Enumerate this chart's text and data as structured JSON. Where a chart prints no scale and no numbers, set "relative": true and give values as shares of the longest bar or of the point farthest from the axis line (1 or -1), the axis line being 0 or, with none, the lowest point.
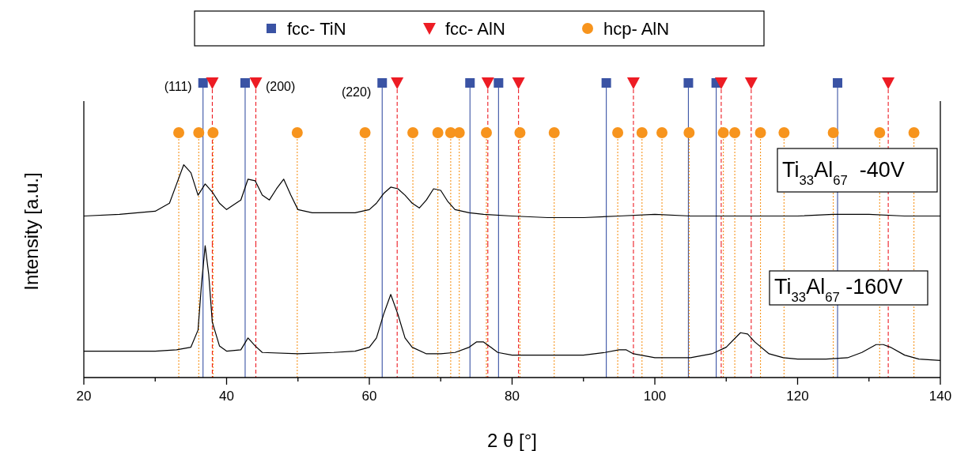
{
  "chart_data": [
    {
      "type": "line",
      "relative": true,
      "ylabel": "Intensity [a.u.]",
      "xlim": [
        20,
        140
      ],
      "tick_labels": false,
      "legend": "top",
      "series": [
        {
          "type": "line",
          "color": "#000000",
          "x": [
            20,
            25,
            30,
            32,
            33,
            34,
            35,
            36,
            37,
            38,
            39,
            40,
            42,
            43,
            44,
            45,
            46,
            47,
            48,
            49,
            50,
            52,
            55,
            58,
            60,
            61,
            62,
            63,
            64,
            65,
            66,
            67,
            68,
            69,
            70,
            71,
            72,
            74,
            76,
            80,
            85,
            90,
            95,
            100,
            105,
            110,
            115,
            120,
            125,
            130,
            135,
            140
          ],
          "values": [
            0.17,
            0.18,
            0.2,
            0.25,
            0.37,
            0.49,
            0.44,
            0.3,
            0.37,
            0.32,
            0.25,
            0.21,
            0.27,
            0.4,
            0.39,
            0.3,
            0.27,
            0.34,
            0.4,
            0.3,
            0.21,
            0.19,
            0.19,
            0.19,
            0.21,
            0.25,
            0.31,
            0.35,
            0.34,
            0.3,
            0.25,
            0.22,
            0.27,
            0.34,
            0.33,
            0.26,
            0.21,
            0.19,
            0.18,
            0.17,
            0.16,
            0.16,
            0.17,
            0.18,
            0.17,
            0.17,
            0.17,
            0.17,
            0.18,
            0.18,
            0.17,
            0.17
          ]
        },
        {
          "type": "scatter",
          "name": "fcc- TiN",
          "color": "#3a53a4",
          "marker": "square",
          "x": [
            36.7,
            42.6,
            61.8,
            74.1,
            78.1,
            93.2,
            104.7,
            108.6,
            125.6
          ],
          "values": [
            1,
            1,
            1,
            1,
            1,
            1,
            1,
            1,
            1
          ]
        },
        {
          "type": "scatter",
          "name": "fcc- AlN",
          "color": "#ed1c24",
          "marker": "triangle",
          "x": [
            38.0,
            44.1,
            63.9,
            76.6,
            80.9,
            97.0,
            109.3,
            113.5,
            132.7
          ],
          "values": [
            1,
            1,
            1,
            1,
            1,
            1,
            1,
            1,
            1
          ]
        },
        {
          "type": "scatter",
          "name": "hcp- AlN",
          "color": "#f7941d",
          "marker": "circle",
          "x": [
            33.3,
            36.1,
            38.1,
            49.9,
            59.4,
            66.1,
            69.6,
            71.4,
            72.6,
            76.4,
            81.1,
            85.9,
            94.8,
            98.2,
            101.0,
            104.8,
            109.6,
            111.2,
            114.8,
            118.1,
            125.0,
            131.5,
            136.3
          ],
          "values": [
            0.69,
            0.69,
            0.69,
            0.69,
            0.69,
            0.69,
            0.69,
            0.69,
            0.69,
            0.69,
            0.69,
            0.69,
            0.69,
            0.69,
            0.69,
            0.69,
            0.69,
            0.69,
            0.69,
            0.69,
            0.69,
            0.69,
            0.69
          ]
        }
      ],
      "ref_lines": [
        {
          "axis": "x",
          "value": 36.7,
          "color": "#3a53a4",
          "line_style": "solid"
        },
        {
          "axis": "x",
          "value": 42.6,
          "color": "#3a53a4",
          "line_style": "solid"
        },
        {
          "axis": "x",
          "value": 61.8,
          "color": "#3a53a4",
          "line_style": "solid"
        },
        {
          "axis": "x",
          "value": 74.1,
          "color": "#3a53a4",
          "line_style": "solid"
        },
        {
          "axis": "x",
          "value": 78.1,
          "color": "#3a53a4",
          "line_style": "solid"
        },
        {
          "axis": "x",
          "value": 93.2,
          "color": "#3a53a4",
          "line_style": "solid"
        },
        {
          "axis": "x",
          "value": 104.7,
          "color": "#3a53a4",
          "line_style": "solid"
        },
        {
          "axis": "x",
          "value": 108.6,
          "color": "#3a53a4",
          "line_style": "solid"
        },
        {
          "axis": "x",
          "value": 125.6,
          "color": "#3a53a4",
          "line_style": "solid"
        },
        {
          "axis": "x",
          "value": 38.0,
          "color": "#ed1c24",
          "line_style": "dashed"
        },
        {
          "axis": "x",
          "value": 44.1,
          "color": "#ed1c24",
          "line_style": "dashed"
        },
        {
          "axis": "x",
          "value": 63.9,
          "color": "#ed1c24",
          "line_style": "dashed"
        },
        {
          "axis": "x",
          "value": 76.6,
          "color": "#ed1c24",
          "line_style": "dashed"
        },
        {
          "axis": "x",
          "value": 80.9,
          "color": "#ed1c24",
          "line_style": "dashed"
        },
        {
          "axis": "x",
          "value": 97.0,
          "color": "#ed1c24",
          "line_style": "dashed"
        },
        {
          "axis": "x",
          "value": 109.3,
          "color": "#ed1c24",
          "line_style": "dashed"
        },
        {
          "axis": "x",
          "value": 113.5,
          "color": "#ed1c24",
          "line_style": "dashed"
        },
        {
          "axis": "x",
          "value": 132.7,
          "color": "#ed1c24",
          "line_style": "dashed"
        },
        {
          "axis": "x",
          "value": 33.3,
          "color": "#f7941d",
          "line_style": "dotted"
        },
        {
          "axis": "x",
          "value": 36.1,
          "color": "#f7941d",
          "line_style": "dotted"
        },
        {
          "axis": "x",
          "value": 38.1,
          "color": "#f7941d",
          "line_style": "dotted"
        },
        {
          "axis": "x",
          "value": 49.9,
          "color": "#f7941d",
          "line_style": "dotted"
        },
        {
          "axis": "x",
          "value": 59.4,
          "color": "#f7941d",
          "line_style": "dotted"
        },
        {
          "axis": "x",
          "value": 66.1,
          "color": "#f7941d",
          "line_style": "dotted"
        },
        {
          "axis": "x",
          "value": 69.6,
          "color": "#f7941d",
          "line_style": "dotted"
        },
        {
          "axis": "x",
          "value": 71.4,
          "color": "#f7941d",
          "line_style": "dotted"
        },
        {
          "axis": "x",
          "value": 72.6,
          "color": "#f7941d",
          "line_style": "dotted"
        },
        {
          "axis": "x",
          "value": 76.4,
          "color": "#f7941d",
          "line_style": "dotted"
        },
        {
          "axis": "x",
          "value": 81.1,
          "color": "#f7941d",
          "line_style": "dotted"
        },
        {
          "axis": "x",
          "value": 85.9,
          "color": "#f7941d",
          "line_style": "dotted"
        },
        {
          "axis": "x",
          "value": 94.8,
          "color": "#f7941d",
          "line_style": "dotted"
        },
        {
          "axis": "x",
          "value": 98.2,
          "color": "#f7941d",
          "line_style": "dotted"
        },
        {
          "axis": "x",
          "value": 101.0,
          "color": "#f7941d",
          "line_style": "dotted"
        },
        {
          "axis": "x",
          "value": 104.8,
          "color": "#f7941d",
          "line_style": "dotted"
        },
        {
          "axis": "x",
          "value": 109.6,
          "color": "#f7941d",
          "line_style": "dotted"
        },
        {
          "axis": "x",
          "value": 111.2,
          "color": "#f7941d",
          "line_style": "dotted"
        },
        {
          "axis": "x",
          "value": 114.8,
          "color": "#f7941d",
          "line_style": "dotted"
        },
        {
          "axis": "x",
          "value": 118.1,
          "color": "#f7941d",
          "line_style": "dotted"
        },
        {
          "axis": "x",
          "value": 125.0,
          "color": "#f7941d",
          "line_style": "dotted"
        },
        {
          "axis": "x",
          "value": 131.5,
          "color": "#f7941d",
          "line_style": "dotted"
        },
        {
          "axis": "x",
          "value": 136.3,
          "color": "#f7941d",
          "line_style": "dotted"
        }
      ],
      "annotations": [
        {
          "text": "(111)",
          "x": 36.7,
          "y": 1
        },
        {
          "text": "(200)",
          "x": 42.6,
          "y": 1
        },
        {
          "text": "(220)",
          "x": 61.8,
          "y": 1
        },
        "Ti$_{33}$Al$_{67}$  -40V"
      ]
    },
    {
      "type": "line",
      "relative": true,
      "xlabel": "2 θ [°]",
      "xlim": [
        20,
        140
      ],
      "tick_labels": "x",
      "xticks": [
        20,
        {
          "value": 30,
          "label": null
        },
        40,
        {
          "value": 50,
          "label": null
        },
        60,
        {
          "value": 70,
          "label": null
        },
        80,
        {
          "value": 90,
          "label": null
        },
        100,
        {
          "value": 110,
          "label": null
        },
        120,
        {
          "value": 130,
          "label": null
        },
        140
      ],
      "series": [
        {
          "type": "line",
          "color": "#000000",
          "x": [
            20,
            25,
            30,
            33,
            35,
            36,
            36.5,
            37,
            37.5,
            38,
            39,
            40,
            42,
            43,
            44,
            45,
            50,
            55,
            58,
            60,
            61,
            62,
            63,
            64,
            65,
            66,
            68,
            70,
            72,
            74,
            75,
            76,
            77,
            78,
            80,
            85,
            90,
            93,
            95,
            96,
            97,
            100,
            105,
            108,
            110,
            112,
            113,
            114,
            116,
            118,
            120,
            124,
            127,
            129,
            131,
            132,
            133,
            135,
            137,
            140
          ],
          "values": [
            0.2,
            0.2,
            0.2,
            0.21,
            0.23,
            0.36,
            0.72,
            1,
            0.78,
            0.42,
            0.24,
            0.2,
            0.21,
            0.3,
            0.24,
            0.19,
            0.18,
            0.19,
            0.2,
            0.23,
            0.3,
            0.48,
            0.63,
            0.48,
            0.3,
            0.23,
            0.18,
            0.18,
            0.19,
            0.23,
            0.27,
            0.27,
            0.23,
            0.19,
            0.17,
            0.17,
            0.17,
            0.19,
            0.21,
            0.21,
            0.18,
            0.15,
            0.15,
            0.18,
            0.23,
            0.34,
            0.33,
            0.27,
            0.18,
            0.15,
            0.14,
            0.14,
            0.15,
            0.19,
            0.25,
            0.25,
            0.23,
            0.17,
            0.14,
            0.13
          ]
        }
      ],
      "ref_lines": [
        {
          "axis": "x",
          "value": 36.7,
          "color": "#3a53a4",
          "line_style": "solid"
        },
        {
          "axis": "x",
          "value": 42.6,
          "color": "#3a53a4",
          "line_style": "solid"
        },
        {
          "axis": "x",
          "value": 61.8,
          "color": "#3a53a4",
          "line_style": "solid"
        },
        {
          "axis": "x",
          "value": 74.1,
          "color": "#3a53a4",
          "line_style": "solid"
        },
        {
          "axis": "x",
          "value": 78.1,
          "color": "#3a53a4",
          "line_style": "solid"
        },
        {
          "axis": "x",
          "value": 93.2,
          "color": "#3a53a4",
          "line_style": "solid"
        },
        {
          "axis": "x",
          "value": 104.7,
          "color": "#3a53a4",
          "line_style": "solid"
        },
        {
          "axis": "x",
          "value": 108.6,
          "color": "#3a53a4",
          "line_style": "solid"
        },
        {
          "axis": "x",
          "value": 125.6,
          "color": "#3a53a4",
          "line_style": "solid"
        },
        {
          "axis": "x",
          "value": 38.0,
          "color": "#ed1c24",
          "line_style": "dashed"
        },
        {
          "axis": "x",
          "value": 44.1,
          "color": "#ed1c24",
          "line_style": "dashed"
        },
        {
          "axis": "x",
          "value": 63.9,
          "color": "#ed1c24",
          "line_style": "dashed"
        },
        {
          "axis": "x",
          "value": 76.6,
          "color": "#ed1c24",
          "line_style": "dashed"
        },
        {
          "axis": "x",
          "value": 80.9,
          "color": "#ed1c24",
          "line_style": "dashed"
        },
        {
          "axis": "x",
          "value": 97.0,
          "color": "#ed1c24",
          "line_style": "dashed"
        },
        {
          "axis": "x",
          "value": 109.3,
          "color": "#ed1c24",
          "line_style": "dashed"
        },
        {
          "axis": "x",
          "value": 113.5,
          "color": "#ed1c24",
          "line_style": "dashed"
        },
        {
          "axis": "x",
          "value": 132.7,
          "color": "#ed1c24",
          "line_style": "dashed"
        },
        {
          "axis": "x",
          "value": 33.3,
          "color": "#f7941d",
          "line_style": "dotted"
        },
        {
          "axis": "x",
          "value": 36.1,
          "color": "#f7941d",
          "line_style": "dotted"
        },
        {
          "axis": "x",
          "value": 38.1,
          "color": "#f7941d",
          "line_style": "dotted"
        },
        {
          "axis": "x",
          "value": 49.9,
          "color": "#f7941d",
          "line_style": "dotted"
        },
        {
          "axis": "x",
          "value": 59.4,
          "color": "#f7941d",
          "line_style": "dotted"
        },
        {
          "axis": "x",
          "value": 66.1,
          "color": "#f7941d",
          "line_style": "dotted"
        },
        {
          "axis": "x",
          "value": 69.6,
          "color": "#f7941d",
          "line_style": "dotted"
        },
        {
          "axis": "x",
          "value": 71.4,
          "color": "#f7941d",
          "line_style": "dotted"
        },
        {
          "axis": "x",
          "value": 72.6,
          "color": "#f7941d",
          "line_style": "dotted"
        },
        {
          "axis": "x",
          "value": 76.4,
          "color": "#f7941d",
          "line_style": "dotted"
        },
        {
          "axis": "x",
          "value": 81.1,
          "color": "#f7941d",
          "line_style": "dotted"
        },
        {
          "axis": "x",
          "value": 85.9,
          "color": "#f7941d",
          "line_style": "dotted"
        },
        {
          "axis": "x",
          "value": 94.8,
          "color": "#f7941d",
          "line_style": "dotted"
        },
        {
          "axis": "x",
          "value": 98.2,
          "color": "#f7941d",
          "line_style": "dotted"
        },
        {
          "axis": "x",
          "value": 101.0,
          "color": "#f7941d",
          "line_style": "dotted"
        },
        {
          "axis": "x",
          "value": 104.8,
          "color": "#f7941d",
          "line_style": "dotted"
        },
        {
          "axis": "x",
          "value": 109.6,
          "color": "#f7941d",
          "line_style": "dotted"
        },
        {
          "axis": "x",
          "value": 111.2,
          "color": "#f7941d",
          "line_style": "dotted"
        },
        {
          "axis": "x",
          "value": 114.8,
          "color": "#f7941d",
          "line_style": "dotted"
        },
        {
          "axis": "x",
          "value": 118.1,
          "color": "#f7941d",
          "line_style": "dotted"
        },
        {
          "axis": "x",
          "value": 125.0,
          "color": "#f7941d",
          "line_style": "dotted"
        },
        {
          "axis": "x",
          "value": 131.5,
          "color": "#f7941d",
          "line_style": "dotted"
        },
        {
          "axis": "x",
          "value": 136.3,
          "color": "#f7941d",
          "line_style": "dotted"
        }
      ],
      "annotations": [
        "Ti$_{33}$Al$_{67}$ -160V"
      ]
    }
  ]
}
